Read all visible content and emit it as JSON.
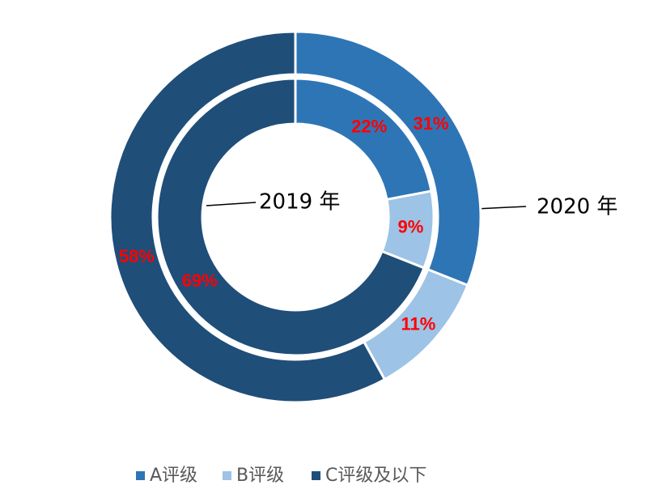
{
  "chart_data": {
    "type": "donut",
    "categories": [
      "A评级",
      "B评级",
      "C评级及以下"
    ],
    "colors": [
      "#2e75b6",
      "#9dc3e6",
      "#1f4e79"
    ],
    "series": [
      {
        "name": "2019 年",
        "values": [
          22,
          9,
          69
        ],
        "value_labels": [
          "22%",
          "9%",
          "69%"
        ]
      },
      {
        "name": "2020 年",
        "values": [
          31,
          11,
          58
        ],
        "value_labels": [
          "31%",
          "11%",
          "58%"
        ]
      }
    ]
  }
}
